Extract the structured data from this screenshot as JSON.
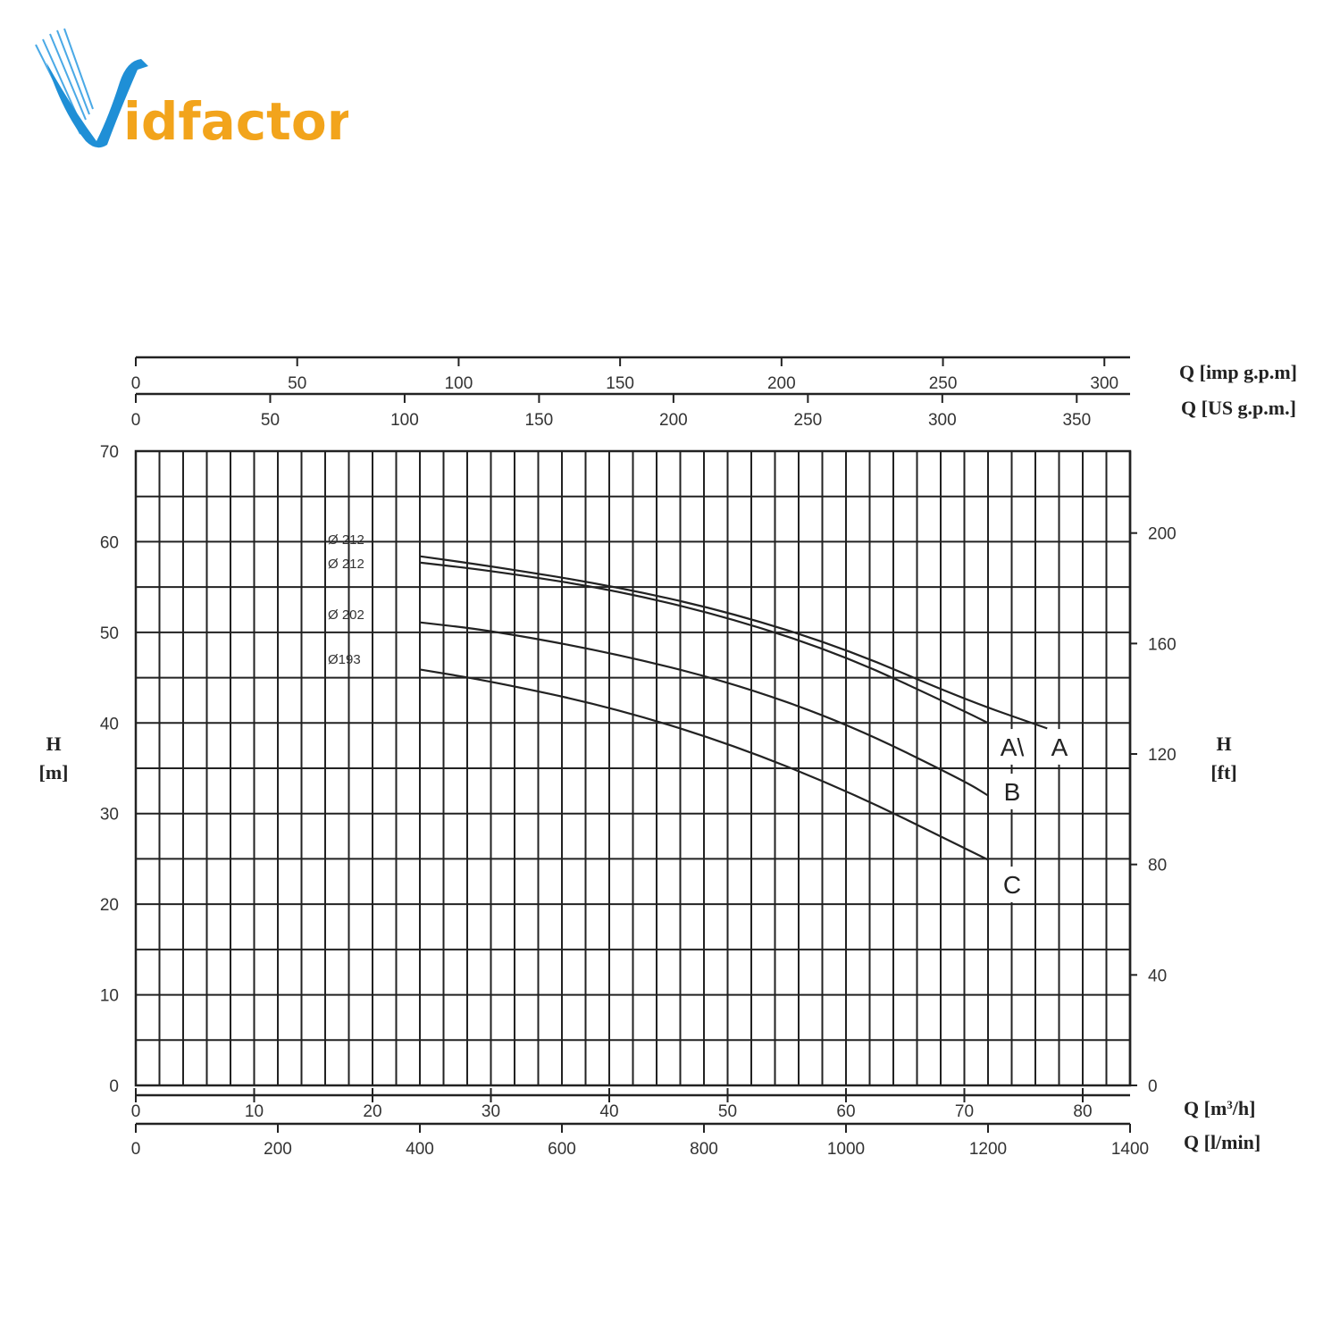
{
  "logo": {
    "text_prefix": "V",
    "text_main": "idfactor",
    "colors": {
      "blue": "#1f8fd6",
      "orange": "#f2a41c"
    }
  },
  "chart_data": {
    "type": "line",
    "title": "",
    "xlim": [
      0,
      84
    ],
    "ylim": [
      0,
      70
    ],
    "grid": true,
    "x_axes": {
      "primary": {
        "label": "Q [m³/h]",
        "label_main": "Q [m",
        "label_sup": "3",
        "label_tail": "/h]",
        "ticks": [
          0,
          10,
          20,
          30,
          40,
          50,
          60,
          70,
          80
        ]
      },
      "l_min": {
        "label": "Q [l/min]",
        "ticks": [
          0,
          200,
          400,
          600,
          800,
          1000,
          1200,
          1400
        ]
      },
      "imp_gpm": {
        "label": "Q [imp g.p.m]",
        "ticks": [
          0,
          50,
          100,
          150,
          200,
          250,
          300
        ]
      },
      "us_gpm": {
        "label": "Q [US g.p.m.]",
        "ticks": [
          0,
          50,
          100,
          150,
          200,
          250,
          300,
          350
        ]
      }
    },
    "y_axes": {
      "left": {
        "label_top": "H",
        "label_bottom": "[m]",
        "ticks": [
          0,
          10,
          20,
          30,
          40,
          50,
          60,
          70
        ]
      },
      "right": {
        "label_top": "H",
        "label_bottom": "[ft]",
        "ticks": [
          0,
          40,
          80,
          120,
          160,
          200
        ]
      }
    },
    "series": [
      {
        "name": "Ø 212",
        "end_label": "A",
        "end_color": "#222222",
        "x": [
          24,
          30,
          40,
          50,
          60,
          70,
          77
        ],
        "y": [
          58.4,
          57.3,
          55.2,
          52.3,
          48.2,
          42.6,
          39.4
        ]
      },
      {
        "name": "Ø 212",
        "end_label": "A\\",
        "end_color": "#222222",
        "x": [
          24,
          30,
          40,
          50,
          60,
          70,
          72
        ],
        "y": [
          57.7,
          56.8,
          54.8,
          51.7,
          47.4,
          41.3,
          40.0
        ]
      },
      {
        "name": "Ø 202",
        "end_label": "B",
        "end_color": "#222222",
        "x": [
          24,
          30,
          40,
          50,
          60,
          70,
          72
        ],
        "y": [
          51.1,
          50.2,
          47.8,
          44.6,
          40.0,
          33.6,
          32.0
        ]
      },
      {
        "name": "Ø193",
        "end_label": "C",
        "end_color": "#e8201a",
        "x": [
          24,
          30,
          40,
          50,
          60,
          70,
          72
        ],
        "y": [
          45.9,
          44.6,
          41.8,
          37.8,
          32.6,
          26.2,
          24.9
        ]
      }
    ]
  }
}
